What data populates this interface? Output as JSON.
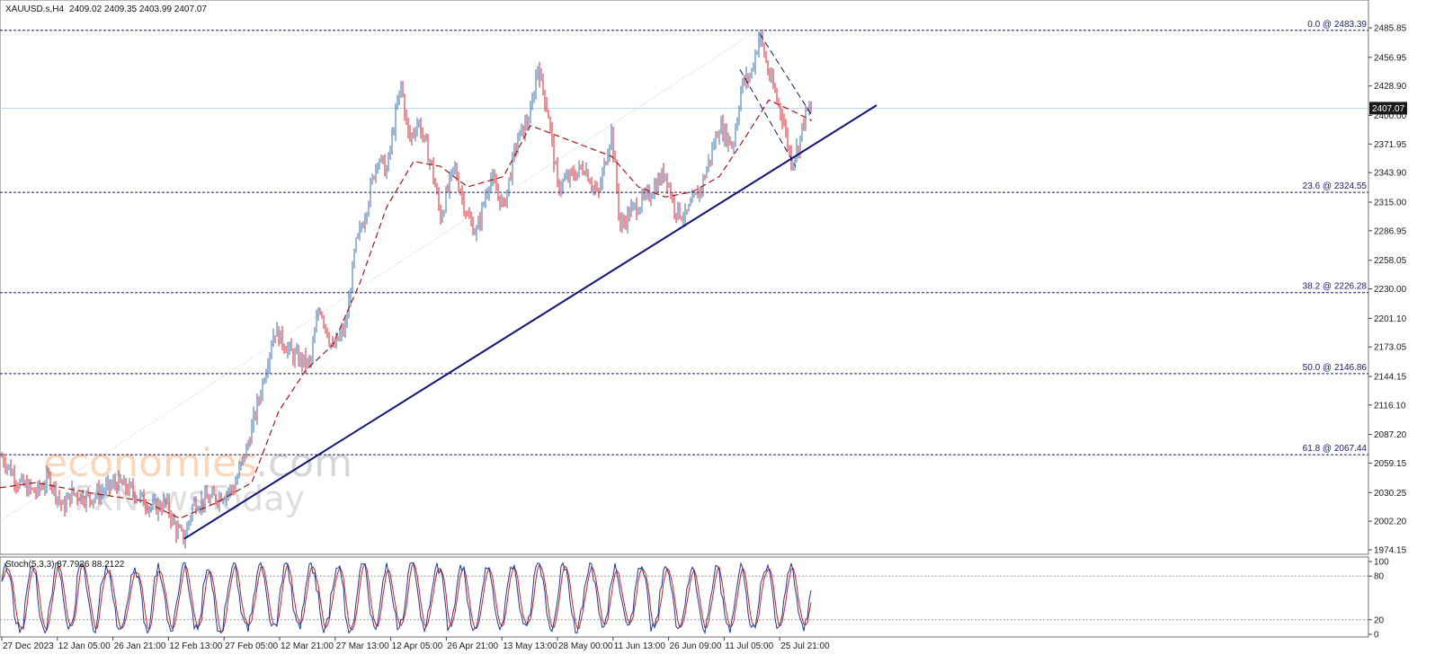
{
  "header": {
    "symbol": "XAUUSD.s,H4",
    "ohlc": "2409.02 2409.35 2403.99 2407.07"
  },
  "watermark": {
    "main": "economies",
    "suffix": ".com",
    "sub": "FxNewsToday"
  },
  "chart_data": [
    {
      "type": "candlestick",
      "symbol": "XAUUSD.s",
      "timeframe": "H4",
      "ylim": [
        1974.15,
        2485.85
      ],
      "y_ticks": [
        2485.85,
        2456.95,
        2428.9,
        2400.0,
        2371.95,
        2343.9,
        2315.0,
        2286.95,
        2258.05,
        2230.0,
        2201.1,
        2173.05,
        2144.15,
        2116.1,
        2087.2,
        2059.15,
        2030.25,
        2002.2,
        1974.15
      ],
      "y_tick_labels": [
        "2485.85",
        "2456.95",
        "2428.90",
        "2400.00",
        "2371.95",
        "2343.90",
        "2315.00",
        "2286.95",
        "2258.05",
        "2230.00",
        "2201.10",
        "2173.05",
        "2144.15",
        "2116.10",
        "2087.20",
        "2059.15",
        "2030.25",
        "2002.20",
        "1974.15"
      ],
      "x_labels": [
        "27 Dec 2023",
        "12 Jan 05:00",
        "26 Jan 21:00",
        "12 Feb 13:00",
        "27 Feb 05:00",
        "12 Mar 21:00",
        "27 Mar 13:00",
        "12 Apr 05:00",
        "26 Apr 21:00",
        "13 May 13:00",
        "28 May 00:00",
        "11 Jun 13:00",
        "26 Jun 09:00",
        "11 Jul 05:00",
        "25 Jul 21:00"
      ],
      "current_price": 2407.07,
      "current_price_label": "2407.07",
      "colors": {
        "up": "#3a6fb0",
        "down": "#e0202a",
        "ma": "#a01818",
        "trendline": "#0f1470",
        "fib": "#1a1a6e",
        "price_line": "#bcd8ee"
      },
      "price_path": [
        [
          0,
          2068
        ],
        [
          10,
          2055
        ],
        [
          20,
          2040
        ],
        [
          40,
          2030
        ],
        [
          55,
          2045
        ],
        [
          70,
          2015
        ],
        [
          80,
          2030
        ],
        [
          100,
          2025
        ],
        [
          130,
          2040
        ],
        [
          150,
          2030
        ],
        [
          170,
          2015
        ],
        [
          185,
          2020
        ],
        [
          195,
          1995
        ],
        [
          205,
          1985
        ],
        [
          215,
          2020
        ],
        [
          240,
          2025
        ],
        [
          260,
          2035
        ],
        [
          275,
          2075
        ],
        [
          290,
          2130
        ],
        [
          305,
          2190
        ],
        [
          325,
          2165
        ],
        [
          345,
          2155
        ],
        [
          355,
          2215
        ],
        [
          370,
          2170
        ],
        [
          385,
          2195
        ],
        [
          395,
          2270
        ],
        [
          405,
          2300
        ],
        [
          420,
          2360
        ],
        [
          430,
          2345
        ],
        [
          440,
          2400
        ],
        [
          446,
          2430
        ],
        [
          455,
          2375
        ],
        [
          465,
          2395
        ],
        [
          480,
          2350
        ],
        [
          490,
          2300
        ],
        [
          505,
          2350
        ],
        [
          520,
          2300
        ],
        [
          530,
          2285
        ],
        [
          545,
          2340
        ],
        [
          560,
          2310
        ],
        [
          575,
          2375
        ],
        [
          590,
          2400
        ],
        [
          598,
          2450
        ],
        [
          610,
          2400
        ],
        [
          620,
          2330
        ],
        [
          635,
          2340
        ],
        [
          650,
          2350
        ],
        [
          665,
          2320
        ],
        [
          680,
          2385
        ],
        [
          690,
          2290
        ],
        [
          700,
          2305
        ],
        [
          720,
          2320
        ],
        [
          740,
          2345
        ],
        [
          750,
          2310
        ],
        [
          762,
          2300
        ],
        [
          780,
          2330
        ],
        [
          800,
          2390
        ],
        [
          815,
          2370
        ],
        [
          825,
          2430
        ],
        [
          835,
          2440
        ],
        [
          845,
          2480
        ],
        [
          855,
          2440
        ],
        [
          870,
          2400
        ],
        [
          880,
          2355
        ],
        [
          888,
          2370
        ],
        [
          895,
          2400
        ],
        [
          903,
          2407
        ]
      ],
      "moving_average": [
        [
          0,
          2035
        ],
        [
          40,
          2040
        ],
        [
          100,
          2030
        ],
        [
          160,
          2022
        ],
        [
          200,
          2005
        ],
        [
          240,
          2020
        ],
        [
          280,
          2040
        ],
        [
          310,
          2110
        ],
        [
          340,
          2150
        ],
        [
          370,
          2175
        ],
        [
          400,
          2235
        ],
        [
          430,
          2310
        ],
        [
          460,
          2355
        ],
        [
          490,
          2350
        ],
        [
          520,
          2330
        ],
        [
          560,
          2340
        ],
        [
          590,
          2390
        ],
        [
          620,
          2380
        ],
        [
          650,
          2370
        ],
        [
          680,
          2360
        ],
        [
          710,
          2330
        ],
        [
          740,
          2320
        ],
        [
          770,
          2325
        ],
        [
          800,
          2340
        ],
        [
          830,
          2380
        ],
        [
          855,
          2415
        ],
        [
          880,
          2405
        ],
        [
          903,
          2395
        ]
      ],
      "trendline": [
        [
          205,
          1985
        ],
        [
          975,
          2410
        ]
      ],
      "channel_upper": [
        [
          845,
          2480
        ],
        [
          903,
          2400
        ]
      ],
      "channel_lower": [
        [
          823,
          2445
        ],
        [
          885,
          2350
        ]
      ],
      "fibonacci": [
        {
          "label": "0.0 @ 2483.39",
          "price": 2483.39
        },
        {
          "label": "23.6 @ 2324.55",
          "price": 2324.55
        },
        {
          "label": "38.2 @ 2226.28",
          "price": 2226.28
        },
        {
          "label": "50.0 @ 2146.86",
          "price": 2146.86
        },
        {
          "label": "61.8 @ 2067.44",
          "price": 2067.44
        }
      ]
    },
    {
      "type": "line",
      "name": "Stoch(5,3,3) 87.7926 88.2122",
      "ylim": [
        0,
        100
      ],
      "y_ticks": [
        100,
        80,
        20,
        0
      ],
      "y_tick_labels": [
        "100",
        "80",
        "20",
        "0"
      ],
      "levels": [
        80,
        20
      ],
      "colors": {
        "main": "#1a3a9a",
        "signal": "#d42020"
      }
    }
  ]
}
